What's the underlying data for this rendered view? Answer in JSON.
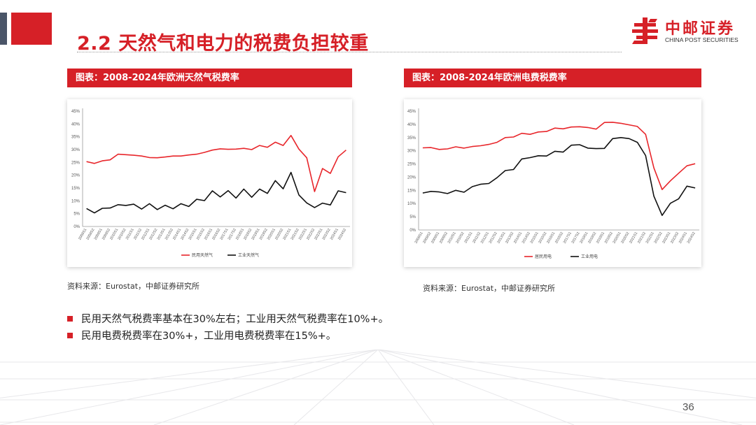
{
  "header": {
    "title": "2.2 天然气和电力的税费负担较重",
    "logo_cn": "中邮证券",
    "logo_en": "CHINA POST SECURITIES"
  },
  "colors": {
    "accent": "#d62027",
    "black_line": "#111111"
  },
  "panels": [
    {
      "title": "图表：2008-2024年欧洲天然气税费率",
      "source": "资料来源：Eurostat，中邮证券研究所"
    },
    {
      "title": "图表：2008-2024年欧洲电费税费率",
      "source": "资料来源：Eurostat，中邮证券研究所"
    }
  ],
  "bullets": [
    "民用天然气税费率基本在30%左右；工业用天然气税费率在10%+。",
    "民用电费税费率在30%+，工业用电费税费率在15%+。"
  ],
  "page_number": "36",
  "chart_data": [
    {
      "type": "line",
      "title": "2008-2024年欧洲天然气税费率",
      "ylim": [
        0,
        45
      ],
      "yticks": [
        "0%",
        "5%",
        "10%",
        "15%",
        "20%",
        "25%",
        "30%",
        "35%",
        "40%",
        "45%"
      ],
      "categories": [
        "2008S1",
        "2008S2",
        "2009S1",
        "2009S2",
        "2010S1",
        "2010S2",
        "2011S1",
        "2011S2",
        "2012S1",
        "2012S2",
        "2013S1",
        "2013S2",
        "2014S1",
        "2014S2",
        "2015S1",
        "2015S2",
        "2016S1",
        "2016S2",
        "2017S1",
        "2017S2",
        "2018S1",
        "2018S2",
        "2019S1",
        "2019S2",
        "2020S1",
        "2020S2",
        "2021S1",
        "2021S2",
        "2022S1",
        "2022S2",
        "2023S1",
        "2023S2",
        "2024S1",
        "2024S2"
      ],
      "series": [
        {
          "name": "民用天然气",
          "color": "#e8262b",
          "values": [
            25.3,
            24.6,
            25.6,
            26.0,
            28.2,
            28.0,
            27.8,
            27.5,
            26.9,
            26.8,
            27.1,
            27.5,
            27.5,
            27.9,
            28.2,
            28.9,
            29.8,
            30.3,
            30.1,
            30.2,
            30.5,
            30.0,
            31.6,
            30.9,
            32.9,
            31.6,
            35.5,
            30.2,
            26.8,
            13.6,
            22.6,
            20.7,
            27.2,
            29.8
          ]
        },
        {
          "name": "工业天然气",
          "color": "#111111",
          "values": [
            7.0,
            5.3,
            7.1,
            7.2,
            8.5,
            8.2,
            8.7,
            6.8,
            8.9,
            6.6,
            8.3,
            6.9,
            8.9,
            7.8,
            10.6,
            10.1,
            13.9,
            11.5,
            14.0,
            11.1,
            14.6,
            11.4,
            14.6,
            12.9,
            17.9,
            14.7,
            21.1,
            12.3,
            9.2,
            7.4,
            9.1,
            8.4,
            13.9,
            13.2
          ]
        }
      ]
    },
    {
      "type": "line",
      "title": "2008-2024年欧洲电费税费率",
      "ylim": [
        0,
        45
      ],
      "yticks": [
        "0%",
        "5%",
        "10%",
        "15%",
        "20%",
        "25%",
        "30%",
        "35%",
        "40%",
        "45%"
      ],
      "categories": [
        "2008S1",
        "2008S2",
        "2009S1",
        "2009S2",
        "2010S1",
        "2010S2",
        "2011S1",
        "2011S2",
        "2012S1",
        "2012S2",
        "2013S1",
        "2013S2",
        "2014S1",
        "2014S2",
        "2015S1",
        "2015S2",
        "2016S1",
        "2016S2",
        "2017S1",
        "2017S2",
        "2018S1",
        "2018S2",
        "2019S1",
        "2019S2",
        "2020S1",
        "2020S2",
        "2021S1",
        "2021S2",
        "2022S1",
        "2022S2",
        "2023S1",
        "2023S2",
        "2024S1",
        "2024S2"
      ],
      "series": [
        {
          "name": "居民用电",
          "color": "#e8262b",
          "values": [
            31.1,
            31.2,
            30.5,
            30.7,
            31.5,
            31.0,
            31.6,
            31.9,
            32.4,
            33.2,
            35.0,
            35.2,
            36.6,
            36.2,
            37.1,
            37.3,
            38.6,
            38.3,
            39.0,
            39.1,
            38.8,
            38.2,
            40.7,
            40.8,
            40.4,
            39.8,
            39.2,
            36.2,
            23.5,
            15.3,
            18.6,
            21.5,
            24.3,
            25.1
          ]
        },
        {
          "name": "工业用电",
          "color": "#111111",
          "values": [
            14.0,
            14.6,
            14.4,
            13.8,
            15.0,
            14.3,
            16.4,
            17.3,
            17.6,
            19.8,
            22.5,
            22.9,
            26.9,
            27.4,
            28.1,
            28.0,
            29.8,
            29.5,
            32.1,
            32.3,
            31.0,
            30.8,
            30.9,
            34.6,
            35.0,
            34.6,
            33.2,
            28.2,
            12.8,
            5.5,
            10.1,
            11.8,
            16.6,
            15.9
          ]
        }
      ]
    }
  ]
}
